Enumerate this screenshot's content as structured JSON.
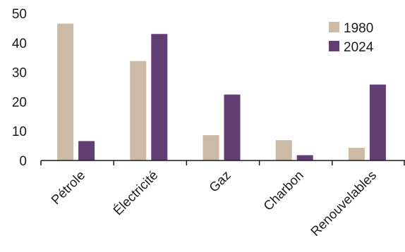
{
  "chart_data": {
    "type": "bar",
    "categories": [
      "Pétrole",
      "Électricité",
      "Gaz",
      "Charbon",
      "Renouvelables"
    ],
    "series": [
      {
        "name": "1980",
        "values": [
          46.5,
          33.8,
          8.6,
          6.9,
          4.3
        ]
      },
      {
        "name": "2024",
        "values": [
          6.6,
          43.0,
          22.4,
          1.8,
          25.8
        ]
      }
    ],
    "ylim": [
      0,
      50
    ],
    "yticks": [
      "0",
      "10",
      "20",
      "30",
      "40",
      "50"
    ],
    "grid": false,
    "legend_position": "top-right",
    "colors": {
      "1980": "#cbbaa6",
      "2024": "#623e73"
    }
  }
}
